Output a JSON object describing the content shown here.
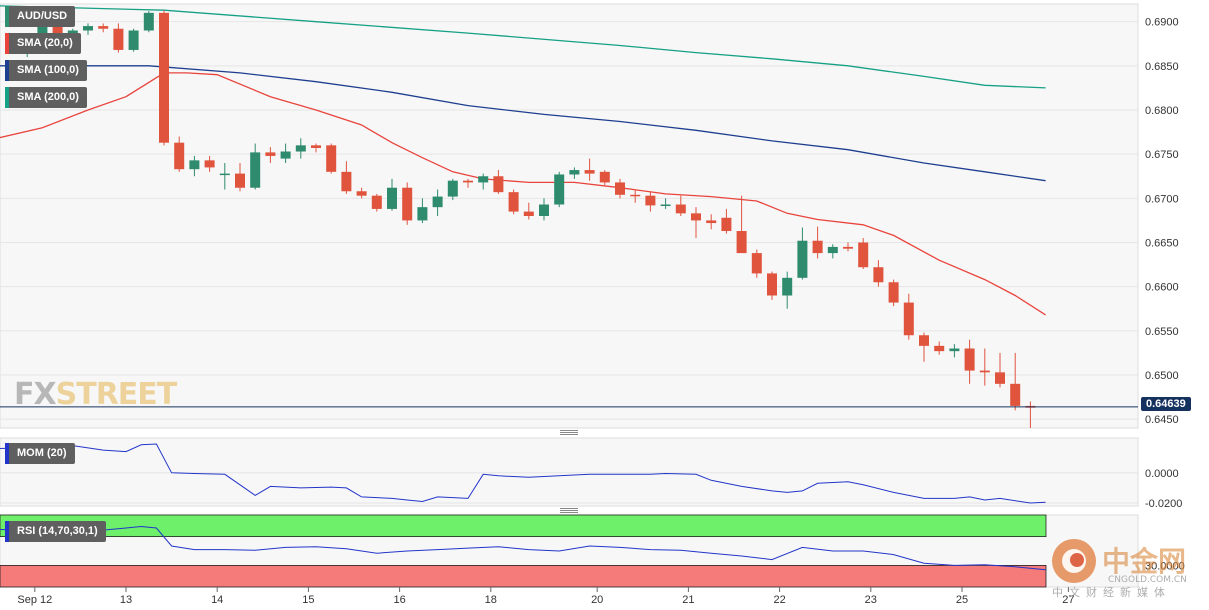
{
  "chart_data": {
    "type": "candlestick",
    "symbol": "AUD/USD",
    "brand": {
      "fx": "FX",
      "street": "STREET"
    },
    "current_price": "0.64639",
    "price_axis": {
      "ticks": [
        "0.6900",
        "0.6850",
        "0.6800",
        "0.6750",
        "0.6700",
        "0.6650",
        "0.6600",
        "0.6550",
        "0.6500",
        "0.6450"
      ],
      "range": [
        0.644,
        0.692
      ]
    },
    "x_ticks": [
      {
        "label": "Sep 12",
        "i": 1.5
      },
      {
        "label": "13",
        "i": 7.5
      },
      {
        "label": "14",
        "i": 13.5
      },
      {
        "label": "15",
        "i": 19.5
      },
      {
        "label": "16",
        "i": 25.5
      },
      {
        "label": "18",
        "i": 31.5
      },
      {
        "label": "20",
        "i": 38.5
      },
      {
        "label": "21",
        "i": 44.5
      },
      {
        "label": "22",
        "i": 50.5
      },
      {
        "label": "23",
        "i": 56.5
      },
      {
        "label": "25",
        "i": 62.5
      },
      {
        "label": "27",
        "i": 69.5
      }
    ],
    "candles": [
      [
        0.688,
        0.6885,
        0.687,
        0.6872
      ],
      [
        0.6872,
        0.688,
        0.686,
        0.6875
      ],
      [
        0.6875,
        0.69,
        0.687,
        0.6895
      ],
      [
        0.6895,
        0.6897,
        0.6882,
        0.6886
      ],
      [
        0.6886,
        0.6892,
        0.688,
        0.689
      ],
      [
        0.689,
        0.6898,
        0.6885,
        0.6895
      ],
      [
        0.6895,
        0.6898,
        0.6888,
        0.6892
      ],
      [
        0.6892,
        0.6898,
        0.6865,
        0.6868
      ],
      [
        0.6868,
        0.6892,
        0.6866,
        0.689
      ],
      [
        0.689,
        0.6912,
        0.6888,
        0.691
      ],
      [
        0.691,
        0.6913,
        0.676,
        0.6763
      ],
      [
        0.6763,
        0.677,
        0.673,
        0.6733
      ],
      [
        0.6733,
        0.6748,
        0.6725,
        0.6743
      ],
      [
        0.6743,
        0.6748,
        0.673,
        0.6735
      ],
      [
        0.6728,
        0.674,
        0.671,
        0.6728
      ],
      [
        0.6728,
        0.674,
        0.6708,
        0.6712
      ],
      [
        0.6712,
        0.6762,
        0.671,
        0.6752
      ],
      [
        0.6752,
        0.6758,
        0.674,
        0.6748
      ],
      [
        0.6745,
        0.6762,
        0.674,
        0.6753
      ],
      [
        0.6753,
        0.6768,
        0.6745,
        0.676
      ],
      [
        0.676,
        0.6762,
        0.6752,
        0.6757
      ],
      [
        0.676,
        0.6762,
        0.6728,
        0.673
      ],
      [
        0.673,
        0.6742,
        0.6705,
        0.6708
      ],
      [
        0.6708,
        0.6712,
        0.67,
        0.6703
      ],
      [
        0.6703,
        0.6705,
        0.6685,
        0.6688
      ],
      [
        0.6688,
        0.6722,
        0.6686,
        0.6712
      ],
      [
        0.6712,
        0.6718,
        0.667,
        0.6675
      ],
      [
        0.6675,
        0.67,
        0.6672,
        0.669
      ],
      [
        0.669,
        0.671,
        0.668,
        0.6702
      ],
      [
        0.6702,
        0.6722,
        0.6698,
        0.672
      ],
      [
        0.672,
        0.6722,
        0.6712,
        0.6718
      ],
      [
        0.6718,
        0.6728,
        0.671,
        0.6725
      ],
      [
        0.6725,
        0.6732,
        0.6705,
        0.6707
      ],
      [
        0.6707,
        0.671,
        0.6682,
        0.6685
      ],
      [
        0.6685,
        0.6695,
        0.6676,
        0.668
      ],
      [
        0.668,
        0.67,
        0.6675,
        0.6693
      ],
      [
        0.6693,
        0.673,
        0.669,
        0.6727
      ],
      [
        0.6727,
        0.6735,
        0.6722,
        0.6732
      ],
      [
        0.6732,
        0.6745,
        0.672,
        0.6728
      ],
      [
        0.673,
        0.6732,
        0.6715,
        0.6718
      ],
      [
        0.6718,
        0.6722,
        0.67,
        0.6704
      ],
      [
        0.6704,
        0.671,
        0.6695,
        0.6703
      ],
      [
        0.6703,
        0.6708,
        0.6685,
        0.6692
      ],
      [
        0.6692,
        0.67,
        0.6688,
        0.6693
      ],
      [
        0.6693,
        0.6703,
        0.668,
        0.6683
      ],
      [
        0.6683,
        0.669,
        0.6655,
        0.6675
      ],
      [
        0.6675,
        0.6682,
        0.6665,
        0.6672
      ],
      [
        0.6678,
        0.6688,
        0.666,
        0.6663
      ],
      [
        0.6663,
        0.6703,
        0.664,
        0.6638
      ],
      [
        0.6638,
        0.6642,
        0.661,
        0.6615
      ],
      [
        0.6615,
        0.6617,
        0.6585,
        0.659
      ],
      [
        0.659,
        0.6617,
        0.6575,
        0.661
      ],
      [
        0.661,
        0.6667,
        0.6608,
        0.6652
      ],
      [
        0.6652,
        0.6668,
        0.6632,
        0.6638
      ],
      [
        0.6638,
        0.6648,
        0.6632,
        0.6645
      ],
      [
        0.6645,
        0.665,
        0.664,
        0.6643
      ],
      [
        0.665,
        0.6655,
        0.662,
        0.6622
      ],
      [
        0.6622,
        0.663,
        0.66,
        0.6605
      ],
      [
        0.6605,
        0.6608,
        0.6578,
        0.6582
      ],
      [
        0.6582,
        0.6592,
        0.654,
        0.6545
      ],
      [
        0.6545,
        0.6548,
        0.6515,
        0.6533
      ],
      [
        0.6533,
        0.6538,
        0.6523,
        0.6527
      ],
      [
        0.6527,
        0.6535,
        0.652,
        0.653
      ],
      [
        0.653,
        0.654,
        0.649,
        0.6505
      ],
      [
        0.6505,
        0.653,
        0.6488,
        0.6503
      ],
      [
        0.6503,
        0.6525,
        0.6486,
        0.649
      ],
      [
        0.649,
        0.6525,
        0.646,
        0.6465
      ],
      [
        0.6465,
        0.647,
        0.644,
        0.6463
      ]
    ],
    "series": [
      {
        "name": "SMA (20,0)",
        "color": "#e9443c",
        "points": [
          [
            -1,
            0.6768
          ],
          [
            2,
            0.678
          ],
          [
            5,
            0.68
          ],
          [
            7.5,
            0.6815
          ],
          [
            10,
            0.6842
          ],
          [
            11.5,
            0.6842
          ],
          [
            13.5,
            0.684
          ],
          [
            17,
            0.6815
          ],
          [
            20,
            0.68
          ],
          [
            23,
            0.6783
          ],
          [
            25,
            0.6763
          ],
          [
            27,
            0.6746
          ],
          [
            29,
            0.673
          ],
          [
            31,
            0.6722
          ],
          [
            34,
            0.6718
          ],
          [
            37,
            0.6718
          ],
          [
            40,
            0.6712
          ],
          [
            43,
            0.6705
          ],
          [
            46,
            0.6702
          ],
          [
            49,
            0.6697
          ],
          [
            51,
            0.6683
          ],
          [
            53,
            0.6676
          ],
          [
            56,
            0.667
          ],
          [
            58,
            0.6658
          ],
          [
            61,
            0.663
          ],
          [
            64,
            0.6608
          ],
          [
            66,
            0.659
          ],
          [
            68,
            0.6568
          ]
        ]
      },
      {
        "name": "SMA (100,0)",
        "color": "#1e3f8f",
        "points": [
          [
            -1,
            0.685
          ],
          [
            9,
            0.685
          ],
          [
            15,
            0.6842
          ],
          [
            20,
            0.6832
          ],
          [
            25,
            0.682
          ],
          [
            30,
            0.6805
          ],
          [
            35,
            0.6795
          ],
          [
            40,
            0.6787
          ],
          [
            45,
            0.6777
          ],
          [
            50,
            0.6765
          ],
          [
            55,
            0.6755
          ],
          [
            60,
            0.674
          ],
          [
            64,
            0.673
          ],
          [
            68,
            0.672
          ]
        ]
      },
      {
        "name": "SMA (200,0)",
        "color": "#16a085",
        "points": [
          [
            -1,
            0.6918
          ],
          [
            10,
            0.6913
          ],
          [
            20,
            0.69
          ],
          [
            30,
            0.6887
          ],
          [
            40,
            0.6873
          ],
          [
            45,
            0.6865
          ],
          [
            50,
            0.6858
          ],
          [
            55,
            0.685
          ],
          [
            60,
            0.6838
          ],
          [
            64,
            0.6828
          ],
          [
            68,
            0.6825
          ]
        ]
      }
    ],
    "momentum": {
      "name": "MOM (20)",
      "color": "#2335c9",
      "ticks": [
        "0.0000",
        "-0.0200"
      ],
      "range": [
        -0.022,
        0.023
      ],
      "values": [
        [
          -1,
          0.016
        ],
        [
          2,
          0.017
        ],
        [
          4,
          0.018
        ],
        [
          6,
          0.015
        ],
        [
          7.5,
          0.014
        ],
        [
          8.5,
          0.0185
        ],
        [
          9.5,
          0.019
        ],
        [
          10.5,
          0.0
        ],
        [
          12,
          -0.0005
        ],
        [
          14,
          -0.001
        ],
        [
          15,
          -0.008
        ],
        [
          16,
          -0.015
        ],
        [
          17,
          -0.009
        ],
        [
          19,
          -0.01
        ],
        [
          21,
          -0.0095
        ],
        [
          22,
          -0.01
        ],
        [
          23,
          -0.016
        ],
        [
          25,
          -0.017
        ],
        [
          26,
          -0.018
        ],
        [
          27,
          -0.019
        ],
        [
          28,
          -0.016
        ],
        [
          30,
          -0.017
        ],
        [
          31,
          -0.001
        ],
        [
          32,
          -0.002
        ],
        [
          34,
          -0.003
        ],
        [
          36,
          -0.002
        ],
        [
          38,
          -0.001
        ],
        [
          40,
          -0.001
        ],
        [
          42,
          -0.001
        ],
        [
          43,
          -0.0005
        ],
        [
          45,
          -0.001
        ],
        [
          46,
          -0.005
        ],
        [
          48,
          -0.009
        ],
        [
          50,
          -0.012
        ],
        [
          51,
          -0.013
        ],
        [
          52,
          -0.012
        ],
        [
          53,
          -0.007
        ],
        [
          55,
          -0.006
        ],
        [
          56,
          -0.008
        ],
        [
          58,
          -0.013
        ],
        [
          60,
          -0.017
        ],
        [
          62,
          -0.017
        ],
        [
          63,
          -0.016
        ],
        [
          64,
          -0.018
        ],
        [
          65,
          -0.017
        ],
        [
          67,
          -0.02
        ],
        [
          68,
          -0.0195
        ]
      ]
    },
    "rsi": {
      "name": "RSI (14,70,30,1)",
      "color": "#2335c9",
      "ticks": [
        "30.0000"
      ],
      "range": [
        0,
        100
      ],
      "overbought": 70,
      "oversold": 30,
      "values": [
        [
          -1,
          80
        ],
        [
          3,
          78
        ],
        [
          5,
          80
        ],
        [
          6,
          79
        ],
        [
          7.5,
          82
        ],
        [
          8.5,
          84
        ],
        [
          9.5,
          82
        ],
        [
          10.5,
          57
        ],
        [
          12,
          52
        ],
        [
          14,
          52
        ],
        [
          16,
          51
        ],
        [
          18,
          55
        ],
        [
          20,
          56
        ],
        [
          22,
          53
        ],
        [
          24,
          47
        ],
        [
          26,
          50
        ],
        [
          28,
          52
        ],
        [
          30,
          54
        ],
        [
          32,
          56
        ],
        [
          34,
          52
        ],
        [
          36,
          50
        ],
        [
          38,
          57
        ],
        [
          40,
          55
        ],
        [
          42,
          52
        ],
        [
          44,
          51
        ],
        [
          46,
          47
        ],
        [
          48,
          43
        ],
        [
          50,
          38
        ],
        [
          52,
          55
        ],
        [
          54,
          50
        ],
        [
          56,
          50
        ],
        [
          58,
          45
        ],
        [
          60,
          33
        ],
        [
          62,
          30
        ],
        [
          64,
          31
        ],
        [
          66,
          28
        ],
        [
          68,
          24
        ]
      ]
    }
  }
}
